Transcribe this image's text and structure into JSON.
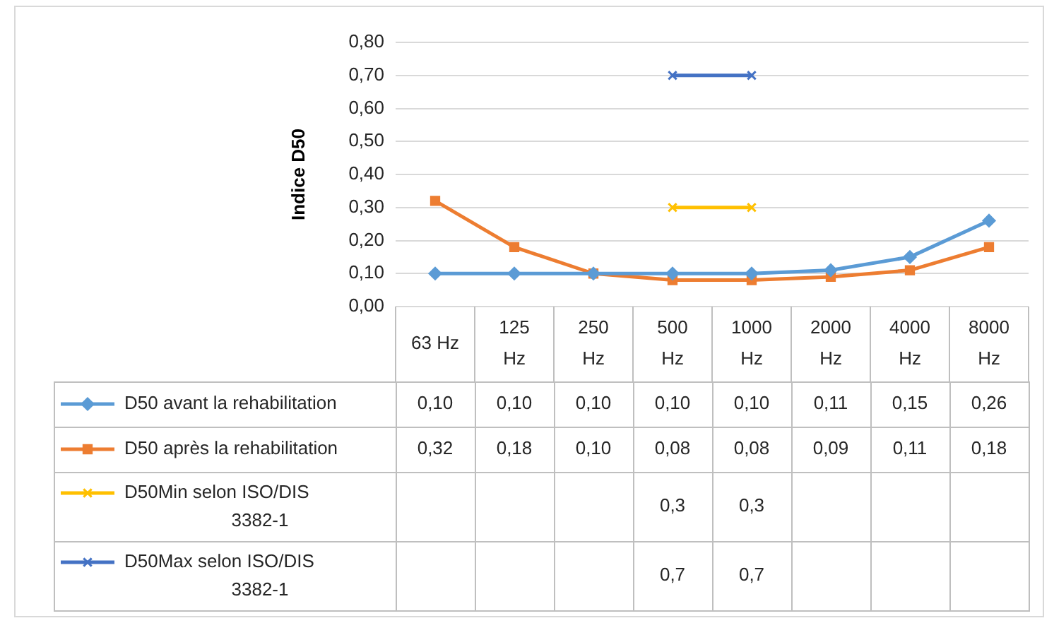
{
  "chart_data": {
    "type": "line",
    "ylabel": "Indice D50",
    "categories": [
      "63 Hz",
      "125 Hz",
      "250 Hz",
      "500 Hz",
      "1000 Hz",
      "2000 Hz",
      "4000 Hz",
      "8000 Hz"
    ],
    "series": [
      {
        "name": "D50 avant la rehabilitation",
        "color": "#5b9bd5",
        "marker": "diamond",
        "values": [
          0.1,
          0.1,
          0.1,
          0.1,
          0.1,
          0.11,
          0.15,
          0.26
        ],
        "value_labels": [
          "0,10",
          "0,10",
          "0,10",
          "0,10",
          "0,10",
          "0,11",
          "0,15",
          "0,26"
        ]
      },
      {
        "name": "D50 après la rehabilitation",
        "color": "#ed7d31",
        "marker": "square",
        "values": [
          0.32,
          0.18,
          0.1,
          0.08,
          0.08,
          0.09,
          0.11,
          0.18
        ],
        "value_labels": [
          "0,32",
          "0,18",
          "0,10",
          "0,08",
          "0,08",
          "0,09",
          "0,11",
          "0,18"
        ]
      },
      {
        "name": "D50Min selon ISO/DIS 3382-1",
        "color": "#ffc000",
        "marker": "cross",
        "values": [
          null,
          null,
          null,
          0.3,
          0.3,
          null,
          null,
          null
        ],
        "value_labels": [
          null,
          null,
          null,
          "0,3",
          "0,3",
          null,
          null,
          null
        ]
      },
      {
        "name": "D50Max selon ISO/DIS 3382-1",
        "color": "#4472c4",
        "marker": "cross",
        "values": [
          null,
          null,
          null,
          0.7,
          0.7,
          null,
          null,
          null
        ],
        "value_labels": [
          null,
          null,
          null,
          "0,7",
          "0,7",
          null,
          null,
          null
        ]
      }
    ],
    "ylim": [
      0,
      0.8
    ],
    "yticks": [
      {
        "value": 0,
        "label": "0,00"
      },
      {
        "value": 0.1,
        "label": "0,10"
      },
      {
        "value": 0.2,
        "label": "0,20"
      },
      {
        "value": 0.3,
        "label": "0,30"
      },
      {
        "value": 0.4,
        "label": "0,40"
      },
      {
        "value": 0.5,
        "label": "0,50"
      },
      {
        "value": 0.6,
        "label": "0,60"
      },
      {
        "value": 0.7,
        "label": "0,70"
      },
      {
        "value": 0.8,
        "label": "0,80"
      }
    ],
    "grid": "y",
    "legend": "bottom",
    "line_style": "solid"
  }
}
